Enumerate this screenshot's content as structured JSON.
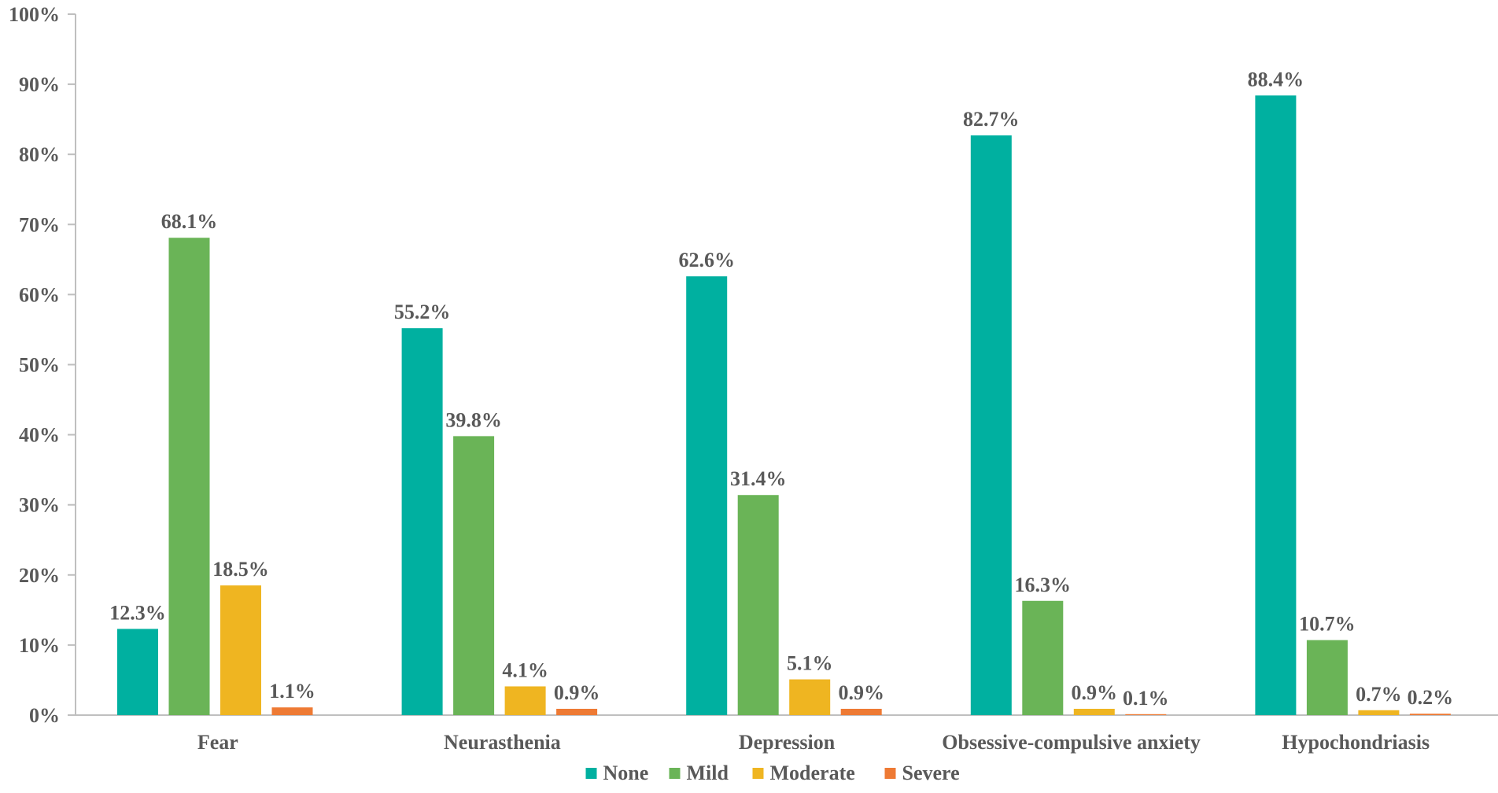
{
  "chart_data": {
    "type": "bar",
    "categories": [
      "Fear",
      "Neurasthenia",
      "Depression",
      "Obsessive-compulsive anxiety",
      "Hypochondriasis"
    ],
    "series": [
      {
        "name": "None",
        "color": "#00b0a0",
        "values": [
          12.3,
          55.2,
          62.6,
          82.7,
          88.4
        ],
        "labels": [
          "12.3%",
          "55.2%",
          "62.6%",
          "82.7%",
          "88.4%"
        ]
      },
      {
        "name": "Mild",
        "color": "#6ab457",
        "values": [
          68.1,
          39.8,
          31.4,
          16.3,
          10.7
        ],
        "labels": [
          "68.1%",
          "39.8%",
          "31.4%",
          "16.3%",
          "10.7%"
        ]
      },
      {
        "name": "Moderate",
        "color": "#efb521",
        "values": [
          18.5,
          4.1,
          5.1,
          0.9,
          0.7
        ],
        "labels": [
          "18.5%",
          "4.1%",
          "5.1%",
          "0.9%",
          "0.7%"
        ]
      },
      {
        "name": "Severe",
        "color": "#ee7a34",
        "values": [
          1.1,
          0.9,
          0.9,
          0.1,
          0.2
        ],
        "labels": [
          "1.1%",
          "0.9%",
          "0.9%",
          "0.1%",
          "0.2%"
        ]
      }
    ],
    "y_ticks": [
      "0%",
      "10%",
      "20%",
      "30%",
      "40%",
      "50%",
      "60%",
      "70%",
      "80%",
      "90%",
      "100%"
    ],
    "ylim": [
      0,
      100
    ],
    "grid": false,
    "legend_position": "bottom-center",
    "title": "",
    "xlabel": "",
    "ylabel": ""
  }
}
